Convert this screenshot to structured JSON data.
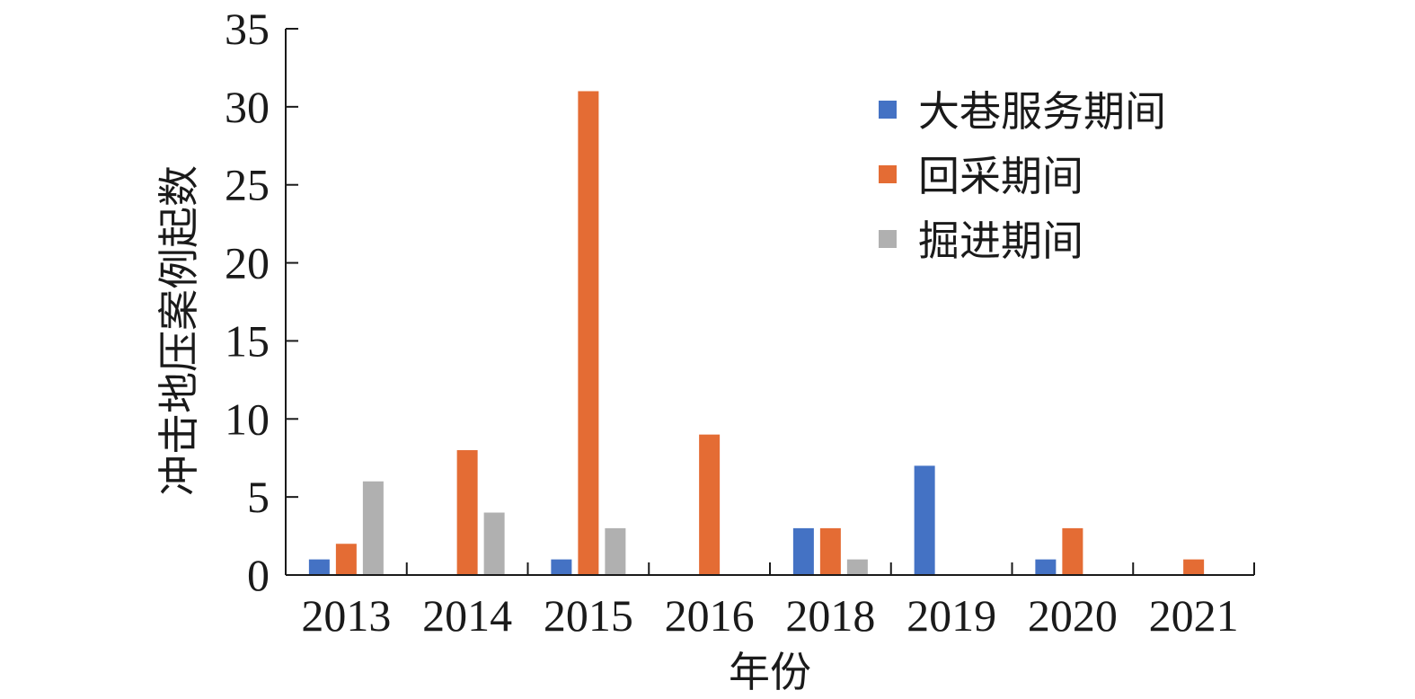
{
  "chart_data": {
    "type": "bar",
    "categories": [
      "2013",
      "2014",
      "2015",
      "2016",
      "2018",
      "2019",
      "2020",
      "2021"
    ],
    "series": [
      {
        "name": "大巷服务期间",
        "color": "#4472C4",
        "values": [
          1,
          0,
          1,
          0,
          3,
          7,
          1,
          0
        ]
      },
      {
        "name": "回采期间",
        "color": "#E46C34",
        "values": [
          2,
          8,
          31,
          9,
          3,
          0,
          3,
          1
        ]
      },
      {
        "name": "掘进期间",
        "color": "#B0B0B0",
        "values": [
          6,
          4,
          3,
          0,
          1,
          0,
          0,
          0
        ]
      }
    ],
    "xlabel": "年份",
    "ylabel": "冲击地压案例起数",
    "ylim": [
      0,
      35
    ],
    "yticks": [
      0,
      5,
      10,
      15,
      20,
      25,
      30,
      35
    ],
    "grid": false,
    "legend_position": "top-right"
  }
}
